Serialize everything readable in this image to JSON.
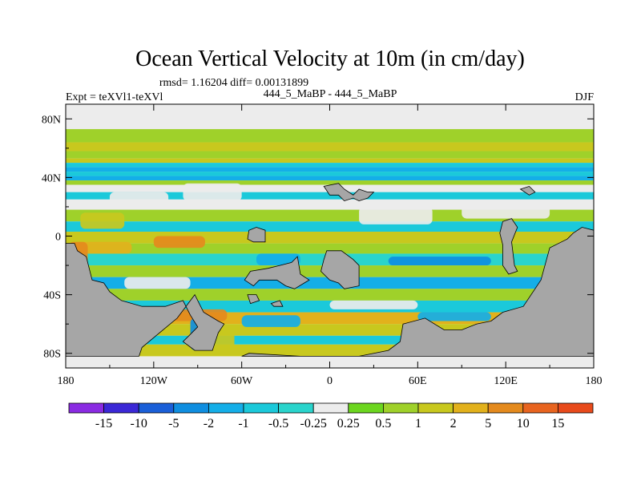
{
  "chart_data": {
    "type": "heatmap",
    "title": "Ocean Vertical Velocity at 10m (in cm/day)",
    "stats_line": "rmsd= 1.16204 diff= 0.00131899",
    "left_label": "Expt = teXVl1-teXVl",
    "center_label": "444_5_MaBP - 444_5_MaBP",
    "right_label": "DJF",
    "xlabel": "",
    "ylabel": "",
    "xlim": [
      -180,
      180
    ],
    "ylim": [
      -90,
      90
    ],
    "x_ticks": [
      {
        "value": -180,
        "label": "180"
      },
      {
        "value": -120,
        "label": "120W"
      },
      {
        "value": -60,
        "label": "60W"
      },
      {
        "value": 0,
        "label": "0"
      },
      {
        "value": 60,
        "label": "60E"
      },
      {
        "value": 120,
        "label": "120E"
      },
      {
        "value": 180,
        "label": "180"
      }
    ],
    "y_ticks": [
      {
        "value": 80,
        "label": "80N"
      },
      {
        "value": 40,
        "label": "40N"
      },
      {
        "value": 0,
        "label": "0"
      },
      {
        "value": -40,
        "label": "40S"
      },
      {
        "value": -80,
        "label": "80S"
      }
    ],
    "colorbar": {
      "colors": [
        "#8a2be2",
        "#3b28d6",
        "#1a5fd8",
        "#0f8ee0",
        "#14aee8",
        "#1bc9da",
        "#2ad4cc",
        "#ececec",
        "#6cd61f",
        "#9fd12a",
        "#c8c81e",
        "#e2b11c",
        "#e48a1d",
        "#e8641f",
        "#e84a1b"
      ],
      "labels": [
        "-15",
        "-10",
        "-5",
        "-2",
        "-1",
        "-0.5",
        "-0.25",
        "0.25",
        "0.5",
        "1",
        "2",
        "5",
        "10",
        "15"
      ]
    },
    "land_color": "#a6a6a6",
    "zonal_bands": [
      {
        "lat_from": 88,
        "lat_to": 73,
        "value": 0.1
      },
      {
        "lat_from": 73,
        "lat_to": 64,
        "value": 0.6
      },
      {
        "lat_from": 64,
        "lat_to": 58,
        "value": 1.5
      },
      {
        "lat_from": 58,
        "lat_to": 53,
        "value": 0.7
      },
      {
        "lat_from": 53,
        "lat_to": 50,
        "value": 1.2
      },
      {
        "lat_from": 50,
        "lat_to": 47,
        "value": -0.7
      },
      {
        "lat_from": 47,
        "lat_to": 44,
        "value": -1.5
      },
      {
        "lat_from": 44,
        "lat_to": 41,
        "value": -0.7
      },
      {
        "lat_from": 41,
        "lat_to": 38,
        "value": -1.2
      },
      {
        "lat_from": 38,
        "lat_to": 35,
        "value": 0.6
      },
      {
        "lat_from": 35,
        "lat_to": 30,
        "value": 0.15
      },
      {
        "lat_from": 30,
        "lat_to": 25,
        "value": -0.6
      },
      {
        "lat_from": 25,
        "lat_to": 18,
        "value": 0.1
      },
      {
        "lat_from": 18,
        "lat_to": 10,
        "value": 0.6
      },
      {
        "lat_from": 10,
        "lat_to": 3,
        "value": -0.6
      },
      {
        "lat_from": 3,
        "lat_to": -5,
        "value": 1.5
      },
      {
        "lat_from": -5,
        "lat_to": -12,
        "value": 0.7
      },
      {
        "lat_from": -12,
        "lat_to": -20,
        "value": -0.4
      },
      {
        "lat_from": -20,
        "lat_to": -28,
        "value": 0.6
      },
      {
        "lat_from": -28,
        "lat_to": -36,
        "value": -1.2
      },
      {
        "lat_from": -36,
        "lat_to": -44,
        "value": 0.8
      },
      {
        "lat_from": -44,
        "lat_to": -52,
        "value": -0.6
      },
      {
        "lat_from": -52,
        "lat_to": -60,
        "value": 2.5
      },
      {
        "lat_from": -60,
        "lat_to": -68,
        "value": 1.0
      },
      {
        "lat_from": -68,
        "lat_to": -74,
        "value": -0.6
      },
      {
        "lat_from": -74,
        "lat_to": -82,
        "value": 1.2
      }
    ],
    "features": [
      {
        "lon_min": -170,
        "lon_max": -140,
        "lat_min": 5,
        "lat_max": 16,
        "value": 1.0
      },
      {
        "lon_min": -150,
        "lon_max": -110,
        "lat_min": 20,
        "lat_max": 30,
        "value": 0.15
      },
      {
        "lon_min": -100,
        "lon_max": -60,
        "lat_min": 24,
        "lat_max": 36,
        "value": 0.15
      },
      {
        "lon_min": 20,
        "lon_max": 70,
        "lat_min": 8,
        "lat_max": 20,
        "value": 0.1
      },
      {
        "lon_min": 90,
        "lon_max": 150,
        "lat_min": 12,
        "lat_max": 22,
        "value": 0.15
      },
      {
        "lon_min": -175,
        "lon_max": -135,
        "lat_min": -12,
        "lat_max": -4,
        "value": 2.5
      },
      {
        "lon_min": -120,
        "lon_max": -85,
        "lat_min": -8,
        "lat_max": 0,
        "value": 6
      },
      {
        "lon_min": -50,
        "lon_max": -20,
        "lat_min": -20,
        "lat_max": -12,
        "value": -1.5
      },
      {
        "lon_min": 40,
        "lon_max": 110,
        "lat_min": -20,
        "lat_max": -14,
        "value": -2.5
      },
      {
        "lon_min": -140,
        "lon_max": -95,
        "lat_min": -36,
        "lat_max": -28,
        "value": 0.1
      },
      {
        "lon_min": -115,
        "lon_max": -70,
        "lat_min": -58,
        "lat_max": -50,
        "value": 8
      },
      {
        "lon_min": -60,
        "lon_max": -20,
        "lat_min": -62,
        "lat_max": -54,
        "value": -1.5
      },
      {
        "lon_min": 0,
        "lon_max": 60,
        "lat_min": -50,
        "lat_max": -44,
        "value": 0.1
      },
      {
        "lon_min": 60,
        "lon_max": 110,
        "lat_min": -58,
        "lat_max": -52,
        "value": -1.2
      },
      {
        "lon_min": -95,
        "lon_max": -80,
        "lat_min": -78,
        "lat_max": -56,
        "value": -3
      },
      {
        "lon_min": -80,
        "lon_max": -65,
        "lat_min": -78,
        "lat_max": -62,
        "value": 1.2
      },
      {
        "lon_min": 150,
        "lon_max": 178,
        "lat_min": -40,
        "lat_max": -20,
        "value": 2.5
      },
      {
        "lon_min": -178,
        "lon_max": -165,
        "lat_min": -20,
        "lat_max": -4,
        "value": 6
      }
    ],
    "land": [
      [
        [
          -180,
          -5
        ],
        [
          -174,
          -5
        ],
        [
          -172,
          -10
        ],
        [
          -166,
          -14
        ],
        [
          -162,
          -30
        ],
        [
          -154,
          -32
        ],
        [
          -150,
          -38
        ],
        [
          -142,
          -44
        ],
        [
          -128,
          -48
        ],
        [
          -112,
          -48
        ],
        [
          -100,
          -44
        ],
        [
          -95,
          -54
        ],
        [
          -90,
          -62
        ],
        [
          -96,
          -68
        ],
        [
          -100,
          -72
        ],
        [
          -92,
          -78
        ],
        [
          -80,
          -78
        ],
        [
          -76,
          -66
        ],
        [
          -72,
          -60
        ],
        [
          -76,
          -58
        ],
        [
          -86,
          -52
        ],
        [
          -92,
          -40
        ],
        [
          -104,
          -56
        ],
        [
          -116,
          -66
        ],
        [
          -128,
          -76
        ],
        [
          -130,
          -82
        ],
        [
          -180,
          -82
        ]
      ],
      [
        [
          -60,
          -82
        ],
        [
          -55,
          -80
        ],
        [
          -20,
          -82
        ],
        [
          20,
          -82
        ],
        [
          40,
          -78
        ],
        [
          48,
          -72
        ],
        [
          50,
          -60
        ],
        [
          65,
          -56
        ],
        [
          78,
          -64
        ],
        [
          90,
          -64
        ],
        [
          100,
          -60
        ],
        [
          110,
          -58
        ],
        [
          118,
          -52
        ],
        [
          132,
          -48
        ],
        [
          144,
          -30
        ],
        [
          150,
          -8
        ],
        [
          158,
          -4
        ],
        [
          162,
          -2
        ],
        [
          166,
          2
        ],
        [
          172,
          6
        ],
        [
          180,
          4
        ],
        [
          180,
          -82
        ],
        [
          -60,
          -82
        ]
      ],
      [
        [
          -34,
          -20
        ],
        [
          -26,
          -18
        ],
        [
          -22,
          -14
        ],
        [
          -20,
          -26
        ],
        [
          -14,
          -30
        ],
        [
          -24,
          -36
        ],
        [
          -30,
          -34
        ],
        [
          -36,
          -30
        ],
        [
          -48,
          -30
        ],
        [
          -52,
          -34
        ],
        [
          -58,
          -30
        ],
        [
          -54,
          -24
        ],
        [
          -42,
          -22
        ]
      ],
      [
        [
          -2,
          -10
        ],
        [
          8,
          -10
        ],
        [
          16,
          -16
        ],
        [
          20,
          -20
        ],
        [
          20,
          -34
        ],
        [
          10,
          -36
        ],
        [
          6,
          -32
        ],
        [
          0,
          -30
        ],
        [
          -6,
          -24
        ],
        [
          -4,
          -16
        ]
      ],
      [
        [
          118,
          10
        ],
        [
          124,
          12
        ],
        [
          128,
          6
        ],
        [
          124,
          -4
        ],
        [
          126,
          -20
        ],
        [
          128,
          -24
        ],
        [
          122,
          -26
        ],
        [
          118,
          -20
        ],
        [
          118,
          -6
        ],
        [
          116,
          2
        ]
      ],
      [
        [
          -4,
          34
        ],
        [
          6,
          36
        ],
        [
          10,
          32
        ],
        [
          16,
          28
        ],
        [
          20,
          32
        ],
        [
          26,
          30
        ],
        [
          30,
          30
        ],
        [
          26,
          26
        ],
        [
          20,
          24
        ],
        [
          16,
          26
        ],
        [
          10,
          24
        ],
        [
          6,
          28
        ],
        [
          0,
          28
        ]
      ],
      [
        [
          130,
          32
        ],
        [
          136,
          34
        ],
        [
          140,
          30
        ],
        [
          136,
          28
        ]
      ],
      [
        [
          -56,
          -40
        ],
        [
          -50,
          -40
        ],
        [
          -48,
          -44
        ],
        [
          -54,
          -46
        ]
      ],
      [
        [
          -40,
          -46
        ],
        [
          -34,
          -44
        ],
        [
          -32,
          -48
        ],
        [
          -38,
          -48
        ]
      ],
      [
        [
          -55,
          4
        ],
        [
          -50,
          6
        ],
        [
          -44,
          4
        ],
        [
          -44,
          -4
        ],
        [
          -52,
          -4
        ],
        [
          -56,
          -2
        ]
      ]
    ]
  }
}
